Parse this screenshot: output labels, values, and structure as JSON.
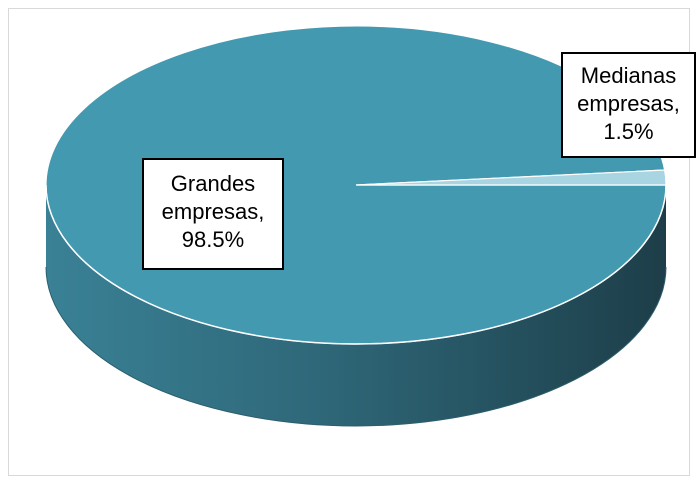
{
  "chart_data": {
    "type": "pie",
    "title": "",
    "style": "3d",
    "categories": [
      "Grandes empresas",
      "Medianas empresas"
    ],
    "values": [
      98.5,
      1.5
    ],
    "unit": "%",
    "colors": [
      "#4399B0",
      "#A9D4E2"
    ],
    "data_labels": [
      {
        "category": "Grandes",
        "category2": "empresas,",
        "value": "98.5%"
      },
      {
        "category": "Medianas",
        "category2": "empresas,",
        "value": "1.5%"
      }
    ]
  }
}
